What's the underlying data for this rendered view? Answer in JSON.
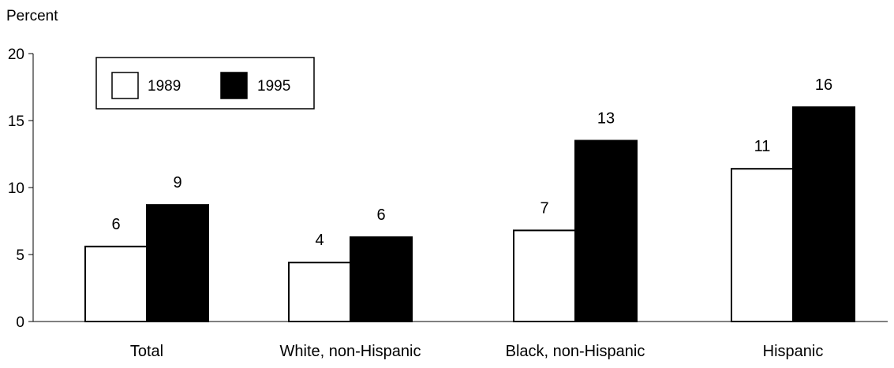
{
  "chart_data": {
    "type": "bar",
    "title": "",
    "ylabel": "Percent",
    "xlabel": "",
    "ylim": [
      0,
      20
    ],
    "yticks": [
      0,
      5,
      10,
      15,
      20
    ],
    "grid": false,
    "legend_position": "top-left",
    "categories": [
      "Total",
      "White, non-Hispanic",
      "Black, non-Hispanic",
      "Hispanic"
    ],
    "series": [
      {
        "name": "1989",
        "values": [
          5.6,
          4.4,
          6.8,
          11.4
        ],
        "labels": [
          "6",
          "4",
          "7",
          "11"
        ],
        "fill": "#ffffff",
        "stroke": "#000000"
      },
      {
        "name": "1995",
        "values": [
          8.7,
          6.3,
          13.5,
          16.0
        ],
        "labels": [
          "9",
          "6",
          "13",
          "16"
        ],
        "fill": "#000000",
        "stroke": "#000000"
      }
    ]
  }
}
